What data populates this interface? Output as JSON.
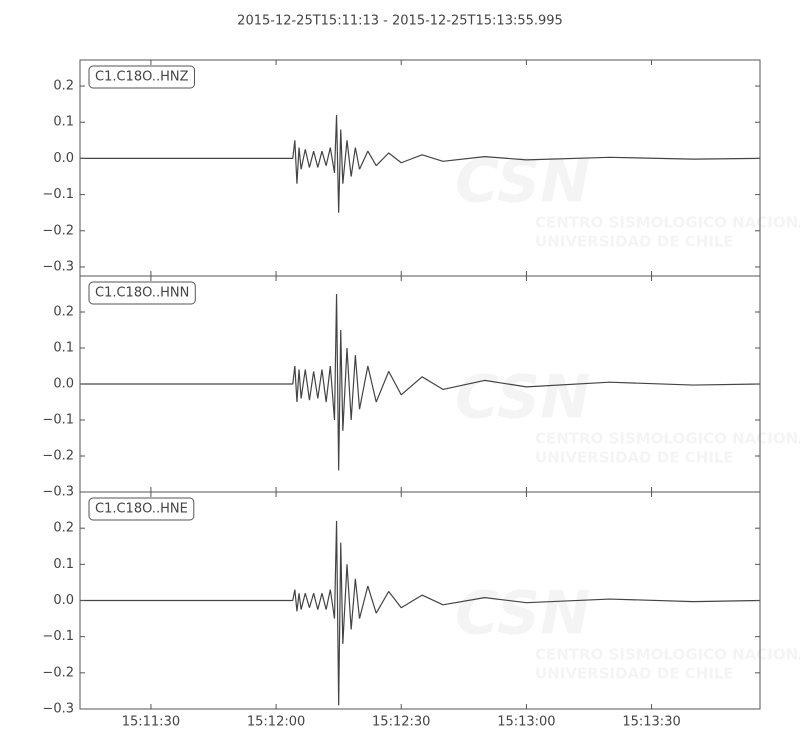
{
  "title": "2015-12-25T15:11:13  -  2015-12-25T15:13:55.995",
  "xlim": [
    "15:11:13",
    "15:13:55.995"
  ],
  "xticks": [
    "15:11:30",
    "15:12:00",
    "15:12:30",
    "15:13:00",
    "15:13:30"
  ],
  "watermark": {
    "logo": "CSN",
    "line1": "CENTRO SISMOLOGICO NACIONAL",
    "line2": "UNIVERSIDAD DE CHILE"
  },
  "chart_data": [
    {
      "type": "line",
      "label": "C1.C18O..HNZ",
      "color": "#444444",
      "x": [
        "15:11:13",
        "15:12:04",
        "15:12:04.5",
        "15:12:05",
        "15:12:05.5",
        "15:12:06",
        "15:12:07",
        "15:12:08",
        "15:12:09",
        "15:12:10",
        "15:12:11",
        "15:12:12",
        "15:12:13",
        "15:12:14",
        "15:12:14.5",
        "15:12:15",
        "15:12:15.5",
        "15:12:16",
        "15:12:17",
        "15:12:18",
        "15:12:19",
        "15:12:20",
        "15:12:22",
        "15:12:24",
        "15:12:27",
        "15:12:30",
        "15:12:35",
        "15:12:40",
        "15:12:50",
        "15:13:00",
        "15:13:20",
        "15:13:40",
        "15:13:55.995"
      ],
      "values": [
        0,
        0,
        0.05,
        -0.07,
        0.03,
        -0.03,
        0.025,
        -0.025,
        0.02,
        -0.025,
        0.02,
        -0.02,
        0.03,
        -0.04,
        0.12,
        -0.15,
        0.08,
        -0.07,
        0.05,
        -0.05,
        0.03,
        -0.03,
        0.02,
        -0.02,
        0.015,
        -0.012,
        0.01,
        -0.008,
        0.005,
        -0.004,
        0.003,
        -0.002,
        0
      ],
      "ylim": [
        -0.325,
        0.272
      ],
      "yticks": [
        {
          "value": -0.3,
          "label": "−0.3"
        },
        {
          "value": -0.2,
          "label": "−0.2"
        },
        {
          "value": -0.1,
          "label": "−0.1"
        },
        {
          "value": 0,
          "label": "0.0"
        },
        {
          "value": 0.1,
          "label": "0.1"
        },
        {
          "value": 0.2,
          "label": "0.2"
        }
      ]
    },
    {
      "type": "line",
      "label": "C1.C18O..HNN",
      "color": "#444444",
      "x": [
        "15:11:13",
        "15:12:04",
        "15:12:04.5",
        "15:12:05",
        "15:12:05.5",
        "15:12:06",
        "15:12:07",
        "15:12:08",
        "15:12:09",
        "15:12:10",
        "15:12:11",
        "15:12:12",
        "15:12:13",
        "15:12:14",
        "15:12:14.5",
        "15:12:15",
        "15:12:15.5",
        "15:12:16",
        "15:12:17",
        "15:12:18",
        "15:12:19",
        "15:12:20",
        "15:12:22",
        "15:12:24",
        "15:12:27",
        "15:12:30",
        "15:12:35",
        "15:12:40",
        "15:12:50",
        "15:13:00",
        "15:13:20",
        "15:13:40",
        "15:13:55.995"
      ],
      "values": [
        0,
        0,
        0.05,
        -0.05,
        0.04,
        -0.04,
        0.04,
        -0.045,
        0.035,
        -0.04,
        0.04,
        -0.05,
        0.05,
        -0.1,
        0.25,
        -0.24,
        0.15,
        -0.13,
        0.1,
        -0.1,
        0.08,
        -0.07,
        0.05,
        -0.05,
        0.035,
        -0.03,
        0.02,
        -0.015,
        0.01,
        -0.008,
        0.005,
        -0.003,
        0
      ],
      "ylim": [
        -0.3,
        0.3
      ],
      "yticks": [
        {
          "value": -0.3,
          "label": "−0.3"
        },
        {
          "value": -0.2,
          "label": "−0.2"
        },
        {
          "value": -0.1,
          "label": "−0.1"
        },
        {
          "value": 0,
          "label": "0.0"
        },
        {
          "value": 0.1,
          "label": "0.1"
        },
        {
          "value": 0.2,
          "label": "0.2"
        }
      ]
    },
    {
      "type": "line",
      "label": "C1.C18O..HNE",
      "color": "#444444",
      "x": [
        "15:11:13",
        "15:12:04",
        "15:12:04.5",
        "15:12:05",
        "15:12:05.5",
        "15:12:06",
        "15:12:07",
        "15:12:08",
        "15:12:09",
        "15:12:10",
        "15:12:11",
        "15:12:12",
        "15:12:13",
        "15:12:14",
        "15:12:14.5",
        "15:12:15",
        "15:12:15.5",
        "15:12:16",
        "15:12:17",
        "15:12:18",
        "15:12:19",
        "15:12:20",
        "15:12:22",
        "15:12:24",
        "15:12:27",
        "15:12:30",
        "15:12:35",
        "15:12:40",
        "15:12:50",
        "15:13:00",
        "15:13:20",
        "15:13:40",
        "15:13:55.995"
      ],
      "values": [
        0,
        0,
        0.03,
        -0.03,
        0.02,
        -0.025,
        0.02,
        -0.02,
        0.02,
        -0.025,
        0.02,
        -0.025,
        0.03,
        -0.05,
        0.22,
        -0.29,
        0.16,
        -0.12,
        0.1,
        -0.08,
        0.06,
        -0.05,
        0.04,
        -0.035,
        0.025,
        -0.02,
        0.015,
        -0.012,
        0.008,
        -0.006,
        0.004,
        -0.003,
        0
      ],
      "ylim": [
        -0.3,
        0.3
      ],
      "yticks": [
        {
          "value": -0.3,
          "label": "−0.3"
        },
        {
          "value": -0.2,
          "label": "−0.2"
        },
        {
          "value": -0.1,
          "label": "−0.1"
        },
        {
          "value": 0,
          "label": "0.0"
        },
        {
          "value": 0.1,
          "label": "0.1"
        },
        {
          "value": 0.2,
          "label": "0.2"
        }
      ]
    }
  ]
}
